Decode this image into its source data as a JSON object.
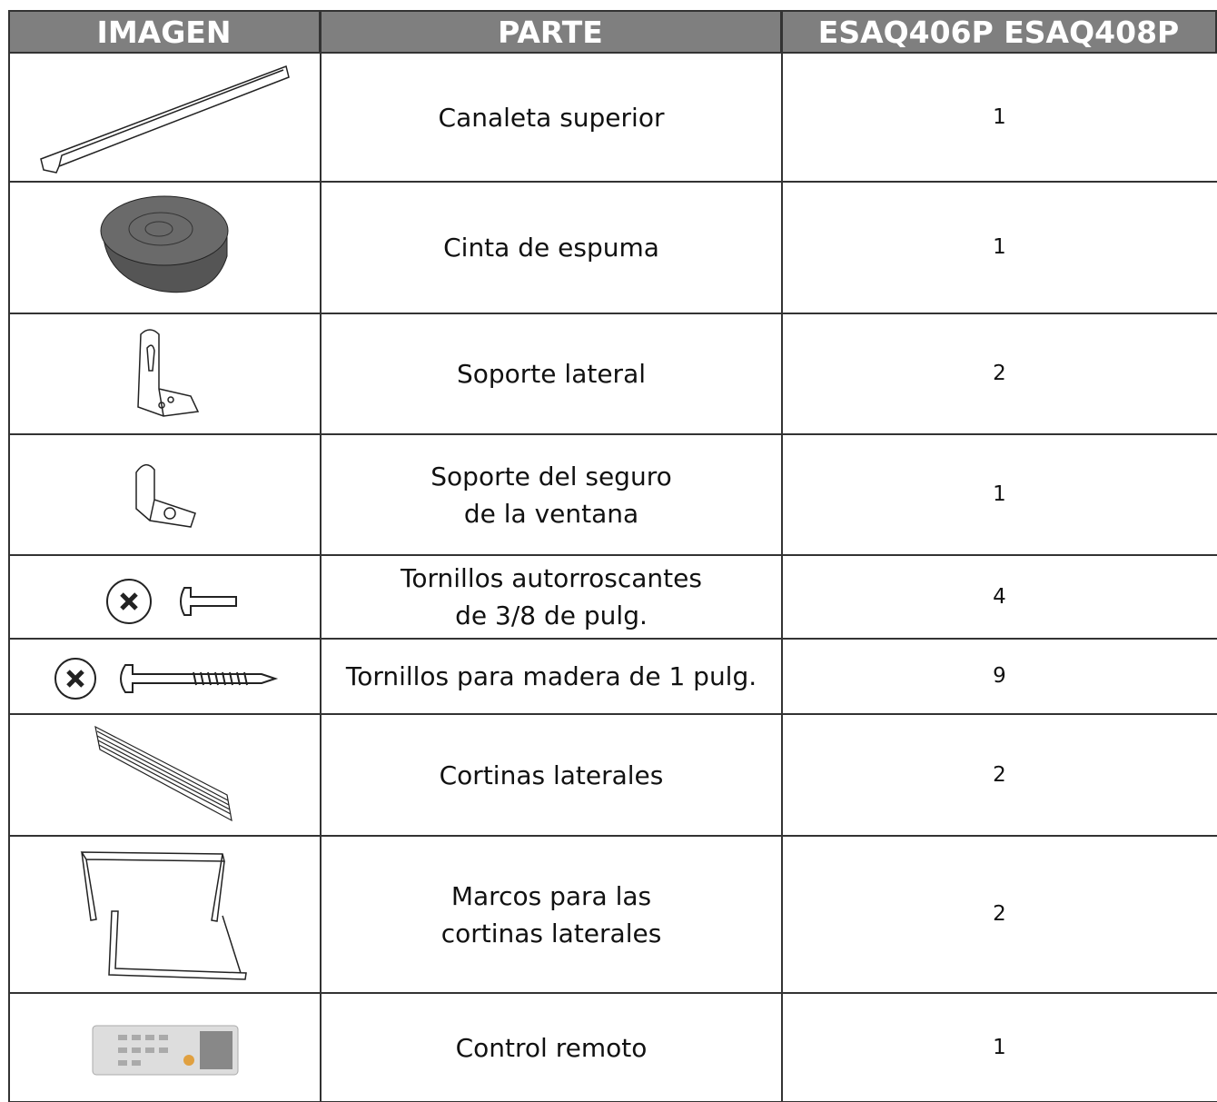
{
  "table": {
    "headers": [
      "IMAGEN",
      "PARTE",
      "ESAQ406P ESAQ408P"
    ],
    "rows": [
      {
        "parte": [
          "Canaleta superior"
        ],
        "cantidad": 1
      },
      {
        "parte": [
          "Cinta de espuma"
        ],
        "cantidad": 1
      },
      {
        "parte": [
          "Soporte lateral"
        ],
        "cantidad": 2
      },
      {
        "parte": [
          "Soporte del seguro",
          "de la ventana"
        ],
        "cantidad": 1
      },
      {
        "parte": [
          "Tornillos autorroscantes",
          "de 3/8 de pulg."
        ],
        "cantidad": 4
      },
      {
        "parte": [
          "Tornillos para madera de 1 pulg."
        ],
        "cantidad": 9
      },
      {
        "parte": [
          "Cortinas laterales"
        ],
        "cantidad": 2
      },
      {
        "parte": [
          "Marcos para las",
          "cortinas laterales"
        ],
        "cantidad": 2
      },
      {
        "parte": [
          "Control remoto"
        ],
        "cantidad": 1
      }
    ]
  }
}
